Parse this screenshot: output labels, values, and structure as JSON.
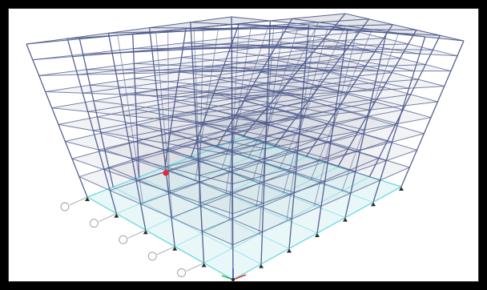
{
  "viewport": {
    "name": "3D model view",
    "background": "#ffffff",
    "frame_color": "#000000"
  },
  "model": {
    "stories": 9,
    "bays_x": 6,
    "bays_y": 5,
    "frame_color": "#4d5a8c",
    "slab_fill": "#9aa3b0",
    "base_color": "#63d8e0",
    "selection_point_color": "#e8262b",
    "support_color": "#2b2b2b",
    "grid_bubble_count": 5
  },
  "axes": {
    "x_color": "#e0302b",
    "y_color": "#2db54a",
    "z_color": "#2b4fd6"
  }
}
